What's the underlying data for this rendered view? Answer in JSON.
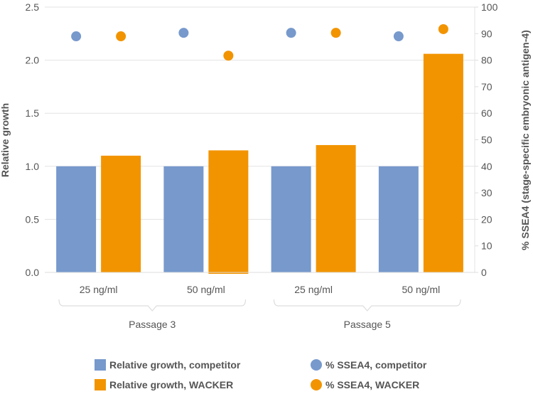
{
  "chart_data": {
    "type": "bar",
    "title": "",
    "groups": [
      {
        "label": "Passage 3",
        "categories": [
          "25 ng/ml",
          "50 ng/ml"
        ]
      },
      {
        "label": "Passage 5",
        "categories": [
          "25 ng/ml",
          "50 ng/ml"
        ]
      }
    ],
    "categories": [
      "25 ng/ml",
      "50 ng/ml",
      "25 ng/ml",
      "50 ng/ml"
    ],
    "ylabel": "Relative growth",
    "ylim": [
      0,
      2.5
    ],
    "yticks": [
      "0.0",
      "0.5",
      "1.0",
      "1.5",
      "2.0",
      "2.5"
    ],
    "y2label": "% SSEA4 (stage-specific embryonic antigen-4)",
    "y2lim": [
      0,
      100
    ],
    "y2ticks": [
      "0",
      "10",
      "20",
      "30",
      "40",
      "50",
      "60",
      "70",
      "80",
      "90",
      "100"
    ],
    "grid": true,
    "legend_placement": "bottom",
    "series": [
      {
        "name": "Relative growth, competitor",
        "type": "bar",
        "axis": "left",
        "color": "#7799cc",
        "values": [
          1.0,
          1.0,
          1.0,
          1.0
        ]
      },
      {
        "name": "Relative growth, WACKER",
        "type": "bar",
        "axis": "left",
        "color": "#f29400",
        "values": [
          1.1,
          1.15,
          1.2,
          2.06
        ]
      },
      {
        "name": "% SSEA4, competitor",
        "type": "scatter",
        "axis": "right",
        "color": "#7799cc",
        "values": [
          89,
          90.3,
          90.3,
          89
        ]
      },
      {
        "name": "% SSEA4, WACKER",
        "type": "scatter",
        "axis": "right",
        "color": "#f29400",
        "values": [
          89,
          81.7,
          90.3,
          91.7
        ]
      }
    ]
  }
}
